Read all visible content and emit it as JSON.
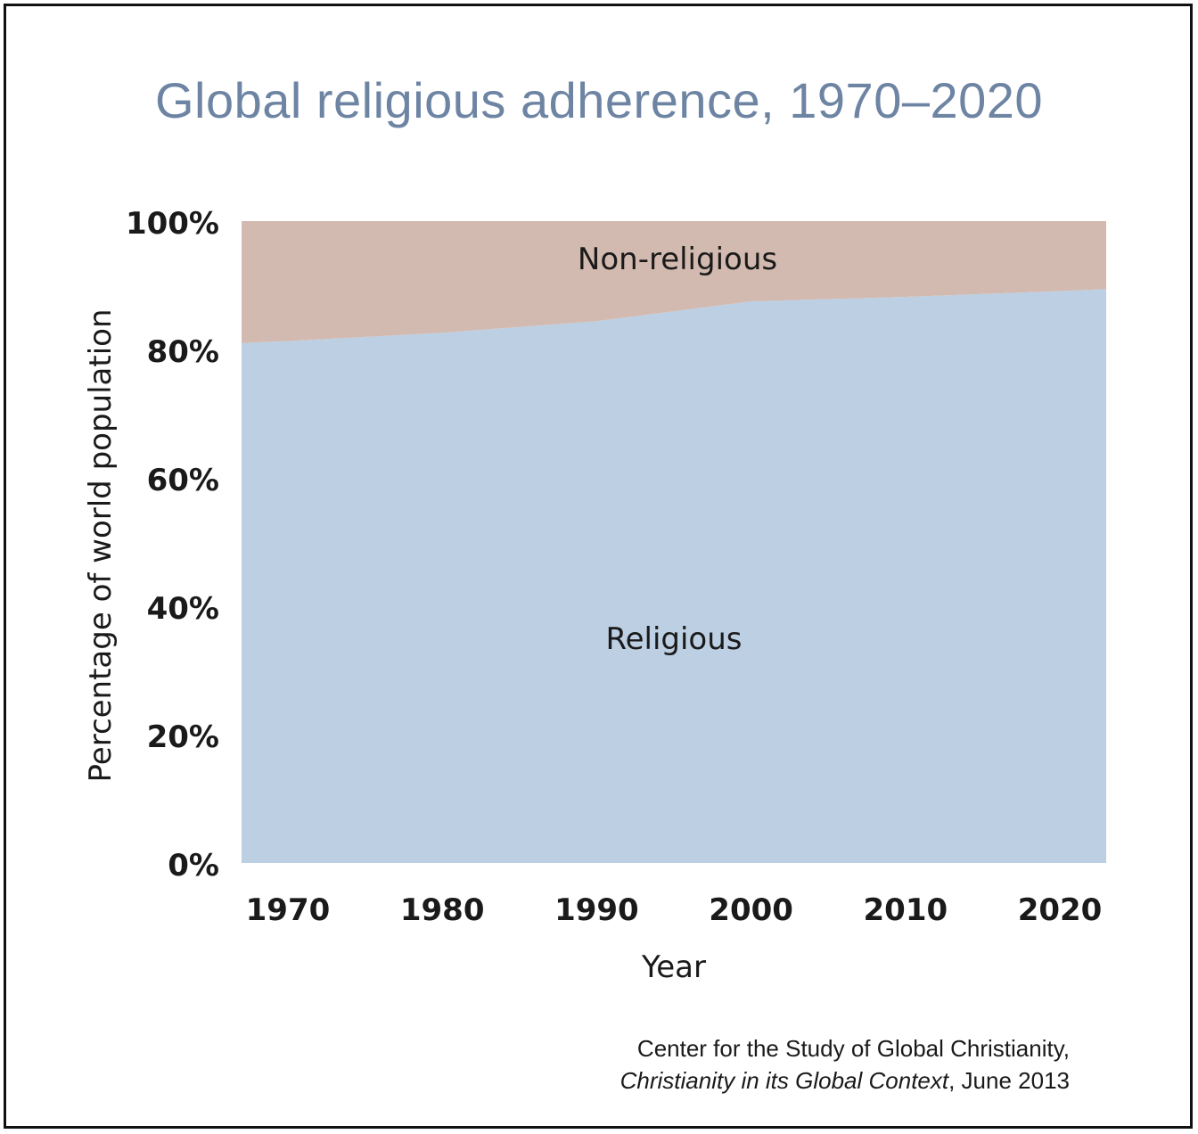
{
  "chart_data": {
    "type": "area",
    "stacked": true,
    "normalized_percent": true,
    "title": "Global religious adherence, 1970–2020",
    "xlabel": "Year",
    "ylabel": "Percentage of world population",
    "x": [
      1967,
      1970,
      1980,
      1990,
      2000,
      2010,
      2020,
      2023
    ],
    "x_ticks": [
      "1970",
      "1980",
      "1990",
      "2000",
      "2010",
      "2020"
    ],
    "y_ticks": [
      "0%",
      "20%",
      "40%",
      "60%",
      "80%",
      "100%"
    ],
    "ylim": [
      0,
      100
    ],
    "series": [
      {
        "name": "Religious",
        "color": "#bccfe3",
        "values": [
          81,
          81.3,
          82.6,
          84.4,
          87.5,
          88.2,
          89.1,
          89.4
        ]
      },
      {
        "name": "Non-religious",
        "color": "#d3bab0",
        "values": [
          19,
          18.7,
          17.4,
          15.6,
          12.5,
          11.8,
          10.9,
          10.6
        ]
      }
    ],
    "grid": false,
    "legend": "none"
  },
  "source": {
    "organization": "Center for the Study of Global Christianity,",
    "work": "Christianity in its Global Context",
    "date": ", June 2013"
  }
}
